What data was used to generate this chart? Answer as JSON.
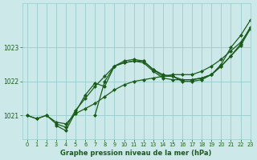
{
  "title": "Graphe pression niveau de la mer (hPa)",
  "bg_color": "#cce8e8",
  "grid_color": "#99cccc",
  "line_color": "#1a5c1a",
  "xlim": [
    -0.5,
    23
  ],
  "ylim": [
    1020.3,
    1024.3
  ],
  "yticks": [
    1021,
    1022,
    1023
  ],
  "xticks": [
    0,
    1,
    2,
    3,
    4,
    5,
    6,
    7,
    8,
    9,
    10,
    11,
    12,
    13,
    14,
    15,
    16,
    17,
    18,
    19,
    20,
    21,
    22,
    23
  ],
  "series": [
    {
      "x": [
        0,
        1,
        2,
        3,
        4,
        5,
        6,
        7,
        8,
        9,
        10,
        11,
        12,
        13,
        14,
        15,
        16,
        17,
        18,
        19,
        20,
        21,
        22,
        23
      ],
      "y": [
        1021.0,
        1020.9,
        1021.0,
        1020.8,
        1020.75,
        1021.05,
        1021.2,
        1021.35,
        1021.55,
        1021.75,
        1021.9,
        1022.0,
        1022.05,
        1022.1,
        1022.15,
        1022.2,
        1022.2,
        1022.2,
        1022.3,
        1022.45,
        1022.65,
        1022.9,
        1023.15,
        1023.55
      ]
    },
    {
      "x": [
        0,
        1,
        2,
        3,
        4,
        5,
        6,
        7,
        8,
        9,
        10,
        11,
        12,
        13,
        14,
        15,
        16,
        17,
        18,
        19,
        20,
        21,
        22,
        23
      ],
      "y": [
        1021.0,
        1020.9,
        1021.0,
        1020.75,
        1020.65,
        1021.15,
        1021.5,
        1021.85,
        1022.15,
        1022.45,
        1022.55,
        1022.6,
        1022.6,
        1022.35,
        1022.2,
        1022.15,
        1022.05,
        1022.05,
        1022.1,
        1022.2,
        1022.45,
        1022.75,
        1023.1,
        1023.6
      ]
    },
    {
      "x": [
        7,
        8,
        9,
        10,
        11,
        12,
        13,
        14,
        15,
        16,
        17,
        18,
        19,
        20,
        21,
        22,
        23
      ],
      "y": [
        1021.0,
        1022.0,
        1022.45,
        1022.55,
        1022.6,
        1022.55,
        1022.3,
        1022.1,
        1022.05,
        1022.05,
        1022.05,
        1022.1,
        1022.2,
        1022.45,
        1022.75,
        1023.05,
        1023.55
      ]
    },
    {
      "x": [
        3,
        4,
        5,
        6,
        7,
        8,
        9,
        10,
        11,
        12,
        13,
        14,
        15,
        16,
        17,
        18,
        19,
        20,
        21,
        22,
        23
      ],
      "y": [
        1020.7,
        1020.55,
        1021.1,
        1021.6,
        1021.95,
        1021.85,
        1022.45,
        1022.6,
        1022.65,
        1022.6,
        1022.35,
        1022.15,
        1022.15,
        1022.0,
        1022.0,
        1022.05,
        1022.2,
        1022.5,
        1023.0,
        1023.35,
        1023.8
      ]
    }
  ]
}
